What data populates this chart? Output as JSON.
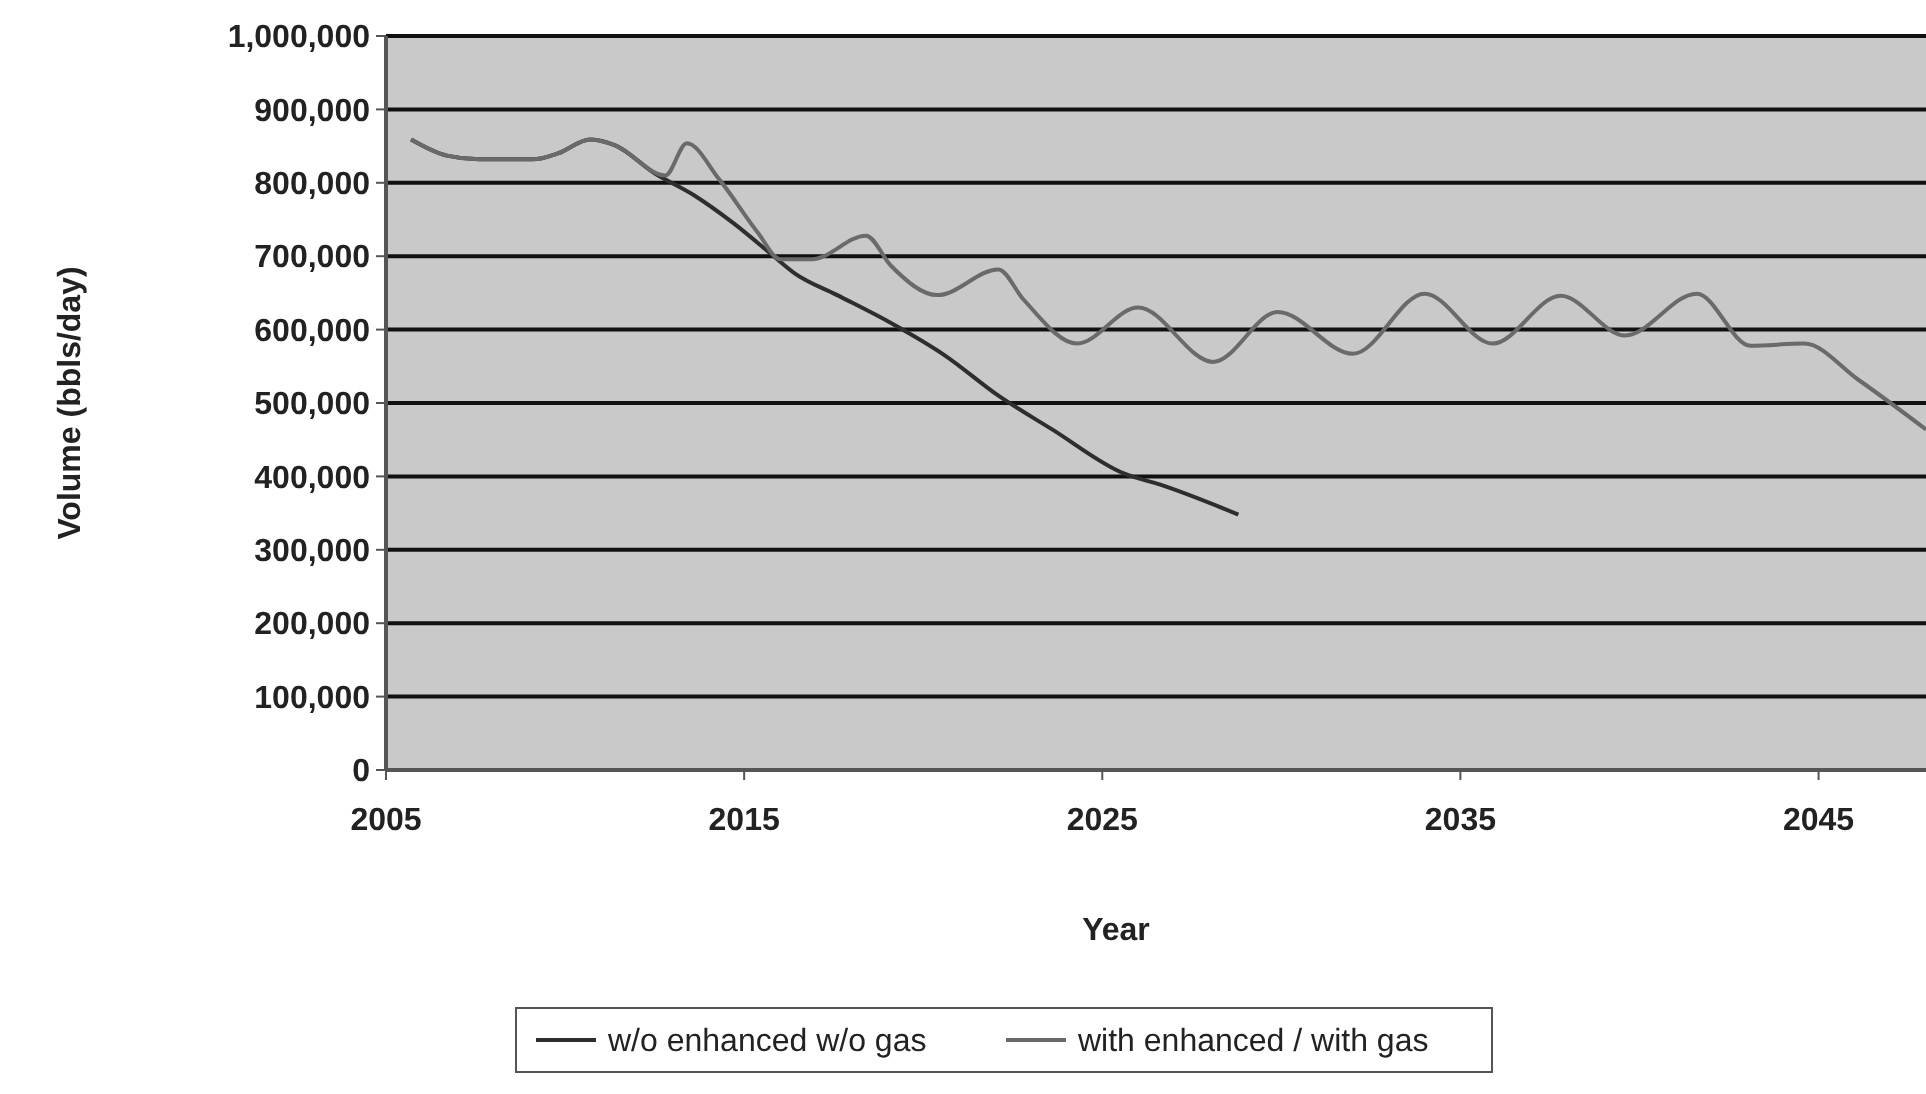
{
  "chart_data": {
    "type": "line",
    "xlabel": "Year",
    "ylabel": "Volume (bbls/day)",
    "xlim": [
      2005,
      2048
    ],
    "xticks": [
      2005,
      2015,
      2025,
      2035,
      2045
    ],
    "ylim": [
      0,
      1000000
    ],
    "yticks": [
      {
        "value": 0,
        "label": "0"
      },
      {
        "value": 100000,
        "label": "100,000"
      },
      {
        "value": 200000,
        "label": "200,000"
      },
      {
        "value": 300000,
        "label": "300,000"
      },
      {
        "value": 400000,
        "label": "400,000"
      },
      {
        "value": 500000,
        "label": "500,000"
      },
      {
        "value": 600000,
        "label": "600,000"
      },
      {
        "value": 700000,
        "label": "700,000"
      },
      {
        "value": 800000,
        "label": "800,000"
      },
      {
        "value": 900000,
        "label": "900,000"
      },
      {
        "value": 1000000,
        "label": "1,000,000"
      }
    ],
    "grid": "y",
    "legend": "bottom",
    "marker": "none",
    "line_style": "solid",
    "series": [
      {
        "name": "w/o enhanced w/o gas",
        "color": "#2e2e2e",
        "x": [
          2005.7,
          2006.7,
          2007.6,
          2009.1,
          2009.8,
          2010.7,
          2011.4,
          2012.5,
          2013.6,
          2014.7,
          2015.8,
          2016.4,
          2017.6,
          2019.1,
          2020.6,
          2022.1,
          2023.6,
          2025.6,
          2026.6,
          2028.8
        ],
        "values": [
          859000,
          837000,
          832000,
          832000,
          840000,
          859000,
          851000,
          813000,
          783000,
          745000,
          701000,
          677000,
          647000,
          609000,
          565000,
          510000,
          464000,
          404000,
          389000,
          348000
        ]
      },
      {
        "name": "with enhanced / with gas",
        "color": "#6a6a6a",
        "x": [
          2005.7,
          2006.7,
          2007.6,
          2009.1,
          2009.8,
          2010.7,
          2011.4,
          2012.8,
          2013.4,
          2014.3,
          2015.4,
          2016,
          2016.9,
          2018.4,
          2019.1,
          2020.4,
          2022.1,
          2022.8,
          2024.3,
          2026,
          2028.1,
          2029.9,
          2032,
          2034,
          2035.9,
          2037.8,
          2039.6,
          2041.6,
          2043.1,
          2044.6,
          2046.1,
          2048
        ],
        "values": [
          859000,
          837000,
          832000,
          832000,
          840000,
          859000,
          851000,
          810000,
          854000,
          805000,
          731000,
          696000,
          696000,
          728000,
          687000,
          647000,
          682000,
          641000,
          581000,
          630000,
          556000,
          624000,
          567000,
          649000,
          581000,
          646000,
          592000,
          649000,
          578000,
          581000,
          532000,
          464000
        ]
      }
    ]
  }
}
